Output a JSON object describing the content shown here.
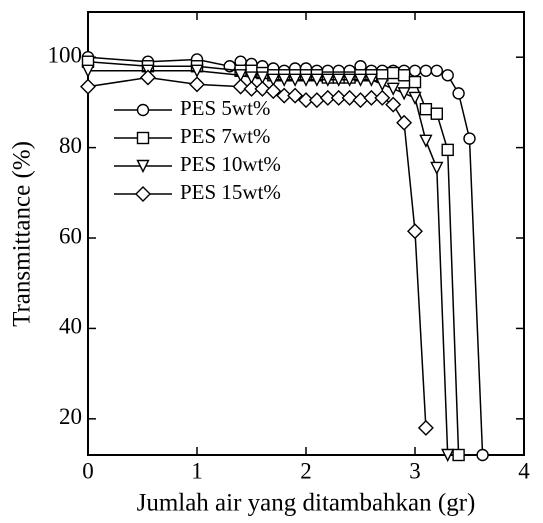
{
  "chart_data": {
    "type": "line",
    "x_label": "Jumlah air yang ditambahkan (gr)",
    "y_label": "Transmittance (%)",
    "xlim": [
      0,
      4
    ],
    "xticks": [
      0,
      1,
      2,
      3,
      4
    ],
    "ylim": [
      12,
      110
    ],
    "yticks": [
      20,
      40,
      60,
      80,
      100
    ],
    "legend": "upper left",
    "series": [
      {
        "name": "PES 5wt%",
        "color": "#000000",
        "marker": "circle",
        "x": [
          0,
          0.55,
          1,
          1.3,
          1.4,
          1.5,
          1.6,
          1.7,
          1.8,
          1.9,
          2,
          2.1,
          2.2,
          2.3,
          2.4,
          2.5,
          2.6,
          2.7,
          2.8,
          2.9,
          3.0,
          3.1,
          3.2,
          3.3,
          3.4,
          3.5,
          3.62
        ],
        "values": [
          100,
          99,
          99.5,
          98,
          99,
          98.5,
          98,
          97.5,
          97,
          97.5,
          97.5,
          97,
          97,
          97,
          97,
          98,
          97,
          97,
          97,
          97,
          97,
          97,
          97,
          96,
          92,
          82,
          12
        ]
      },
      {
        "name": "PES 7wt%",
        "color": "#000000",
        "marker": "square",
        "x": [
          0,
          0.55,
          1,
          1.4,
          1.5,
          1.6,
          1.7,
          1.8,
          1.9,
          2,
          2.1,
          2.2,
          2.3,
          2.4,
          2.5,
          2.6,
          2.7,
          2.8,
          2.9,
          3.0,
          3.1,
          3.2,
          3.3,
          3.4
        ],
        "values": [
          99,
          98,
          98,
          97,
          97,
          96.5,
          96,
          96,
          96,
          96,
          96,
          95.5,
          95.5,
          95.5,
          96,
          96,
          96,
          96.5,
          96,
          94.5,
          88.5,
          87.5,
          79.5,
          12
        ]
      },
      {
        "name": "PES 10wt%",
        "color": "#000000",
        "marker": "triangle",
        "x": [
          0,
          0.55,
          1,
          1.4,
          1.5,
          1.6,
          1.7,
          1.8,
          1.9,
          2,
          2.1,
          2.2,
          2.3,
          2.4,
          2.5,
          2.6,
          2.7,
          2.8,
          2.9,
          3.0,
          3.1,
          3.2,
          3.3
        ],
        "values": [
          97,
          97,
          97,
          96,
          95.5,
          95.5,
          95,
          95,
          95,
          95,
          95,
          95,
          95,
          95,
          95,
          95,
          94,
          93,
          92,
          91,
          81.5,
          75.5,
          12
        ]
      },
      {
        "name": "PES 15wt%",
        "color": "#000000",
        "marker": "diamond",
        "x": [
          0,
          0.55,
          1,
          1.4,
          1.5,
          1.6,
          1.7,
          1.8,
          1.9,
          2,
          2.1,
          2.2,
          2.3,
          2.4,
          2.5,
          2.6,
          2.7,
          2.8,
          2.9,
          3.0,
          3.1
        ],
        "values": [
          93.5,
          95.5,
          94,
          93.5,
          93,
          93,
          92.5,
          91.5,
          91.5,
          90.5,
          90.5,
          91,
          91,
          91,
          90.5,
          91,
          91,
          89.5,
          85.5,
          61.5,
          18
        ]
      }
    ]
  }
}
